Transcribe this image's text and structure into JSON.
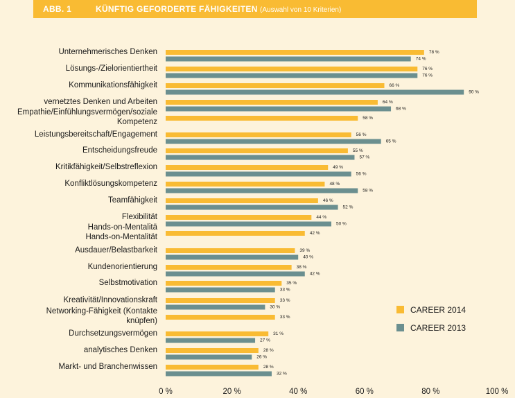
{
  "header": {
    "fig_num": "ABB. 1",
    "title": "KÜNFTIG GEFORDERTE FÄHIGKEITEN",
    "subtitle": "(Auswahl von 10 Kriterien)"
  },
  "colors": {
    "header_bg": "#f9bb33",
    "background": "#fdf3dc",
    "series_2014": "#f9bb33",
    "series_2013": "#6b8f8f"
  },
  "chart_data": {
    "type": "bar",
    "orientation": "horizontal",
    "unit": "%",
    "xlim": [
      0,
      100
    ],
    "x_ticks": [
      "0 %",
      "20 %",
      "40 %",
      "60 %",
      "80 %",
      "100 %"
    ],
    "legend_position": "right",
    "categories": [
      "Unternehmerisches Denken",
      "Lösungs-/Zielorientiertheit",
      "Kommunikationsfähigkeit",
      "vernetztes Denken und Arbeiten",
      "Empathie/Einfühlungsvermögen/soziale Kompetenz",
      "Leistungsbereitschaft/Engagement",
      "Entscheidungsfreude",
      "Kritikfähigkeit/Selbstreflexion",
      "Konfliktlösungskompetenz",
      "Teamfähigkeit",
      "Flexibilität",
      "Hands-on-Mentalität",
      "Ausdauer/Belastbarkeit",
      "Kundenorientierung",
      "Selbstmotivation",
      "Kreativität/Innovationskraft",
      "Networking-Fähigkeit (Kontakte knüpfen)",
      "Durchsetzungsvermögen",
      "analytisches Denken",
      "Markt- und Branchenwissen"
    ],
    "series": [
      {
        "name": "CAREER 2014",
        "values": [
          78,
          76,
          66,
          64,
          58,
          56,
          55,
          49,
          48,
          46,
          44,
          42,
          39,
          38,
          35,
          33,
          33,
          31,
          28,
          28
        ]
      },
      {
        "name": "CAREER 2013",
        "values": [
          74,
          76,
          90,
          68,
          null,
          65,
          57,
          56,
          58,
          52,
          50,
          null,
          40,
          42,
          33,
          30,
          null,
          27,
          26,
          32
        ]
      }
    ]
  }
}
